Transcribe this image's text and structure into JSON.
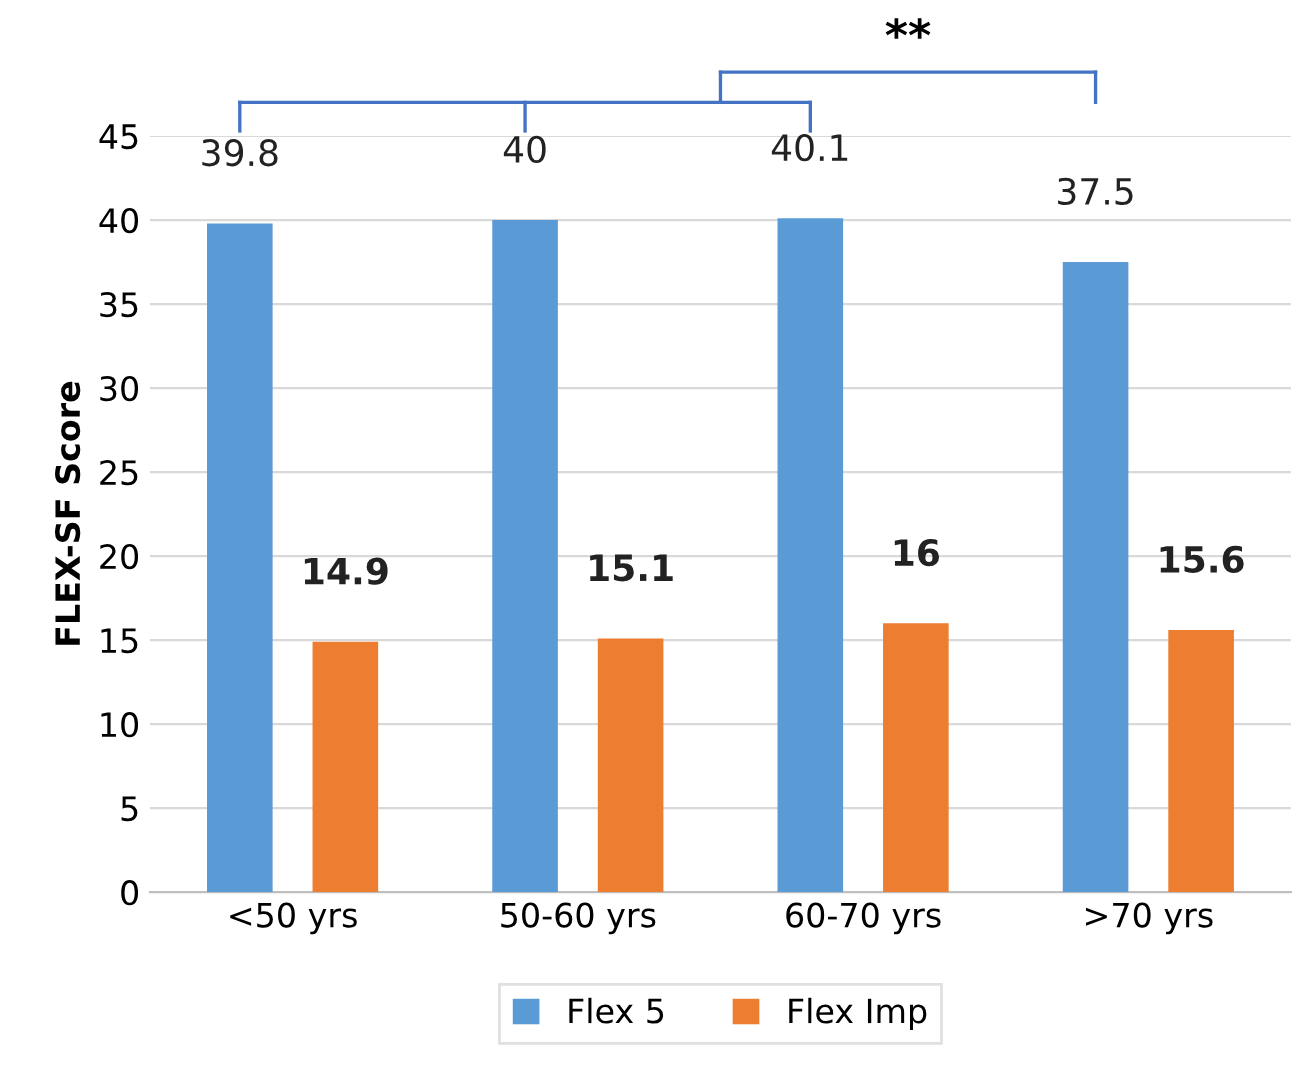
{
  "chart_data": {
    "type": "bar",
    "ylabel": "FLEX-SF Score",
    "categories": [
      "<50 yrs",
      "50-60 yrs",
      "60-70 yrs",
      ">70 yrs"
    ],
    "series": [
      {
        "name": "Flex 5",
        "color": "#5b9bd5",
        "values": [
          39.8,
          40,
          40.1,
          37.5
        ]
      },
      {
        "name": "Flex Imp",
        "color": "#ed7d31",
        "values": [
          14.9,
          15.1,
          16,
          15.6
        ]
      }
    ],
    "ylim": [
      0,
      45
    ],
    "yticks": [
      0,
      5,
      10,
      15,
      20,
      25,
      30,
      35,
      40,
      45
    ],
    "grid": "y",
    "legend": "bottom",
    "data_labels": true,
    "annotations": [
      "**"
    ]
  }
}
